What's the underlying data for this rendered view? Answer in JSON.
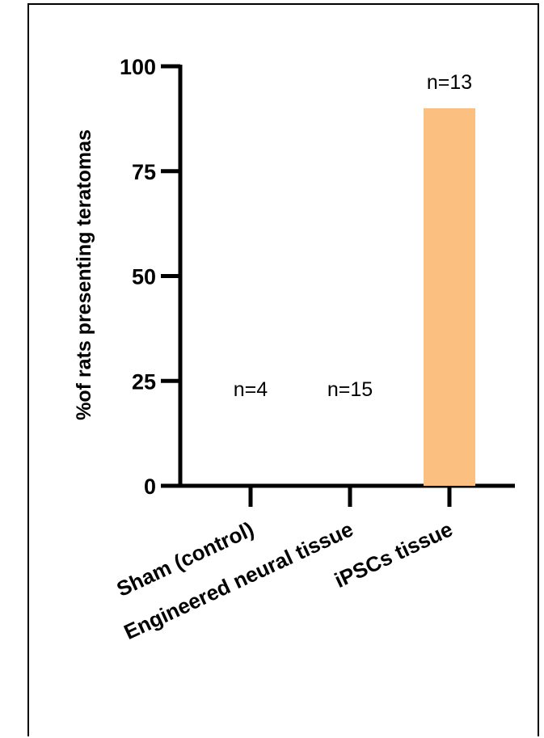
{
  "chart_data": {
    "type": "bar",
    "categories": [
      "Sham (control)",
      "Engineered neural tissue",
      "iPSCs tissue"
    ],
    "values": [
      0,
      0,
      90
    ],
    "annotations": [
      "n=4",
      "n=15",
      "n=13"
    ],
    "ylabel": "%of rats presenting teratomas",
    "xlabel": "",
    "ylim": [
      0,
      100
    ],
    "yticks": [
      0,
      25,
      50,
      75,
      100
    ],
    "grid": false,
    "legend": "none",
    "bar_color": "#FBBF80",
    "axis_color": "#000000"
  }
}
